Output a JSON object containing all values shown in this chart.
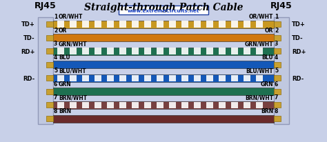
{
  "title": "Straight-through Patch Cable",
  "subtitle": "www.ExtremeCircuits.net",
  "bg_color": "#c8d0e8",
  "connector_bg": "#c0c8e0",
  "connector_edge": "#9098b8",
  "pin_color": "#c8a030",
  "pin_edge": "#907010",
  "left_label": "RJ45",
  "right_label": "RJ45",
  "left_signals": [
    "TD+",
    "TD-",
    "RD+",
    "",
    "RD-",
    "",
    "",
    ""
  ],
  "right_signals": [
    "TD+",
    "TD-",
    "RD+",
    "",
    "RD-",
    "",
    "",
    ""
  ],
  "pins": [
    1,
    2,
    3,
    4,
    5,
    6,
    7,
    8
  ],
  "wire_labels": [
    "OR/WHT",
    "OR",
    "GRN/WHT",
    "BLU",
    "BLU/WHT",
    "GRN",
    "BRN/WHT",
    "BRN"
  ],
  "wire_colors": [
    "#c89820",
    "#d07810",
    "#1e7050",
    "#1458b8",
    "#1458b8",
    "#1e7050",
    "#784040",
    "#6a2a2a"
  ],
  "wire_stripe": [
    true,
    false,
    true,
    false,
    true,
    false,
    true,
    false
  ],
  "figwidth": 4.74,
  "figheight": 2.07,
  "dpi": 100
}
